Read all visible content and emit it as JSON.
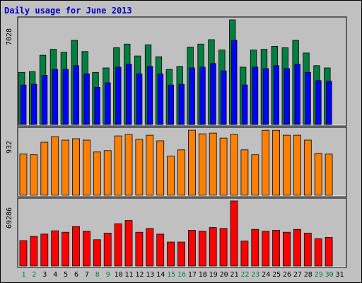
{
  "title": "Daily usage for June 2013",
  "colors": {
    "background": "#c0c0c0",
    "title": "#0000c8",
    "series_top_back": "#008040",
    "series_top_front": "#0000ff",
    "series_mid": "#ff8000",
    "series_bottom": "#ff0000",
    "weekend_label": "#008040",
    "weekday_label": "#000000"
  },
  "chart_data": [
    {
      "type": "bar",
      "panel": "top",
      "ymax_label": "7028",
      "ylim": [
        0,
        7028
      ],
      "categories": [
        "1",
        "2",
        "3",
        "4",
        "5",
        "6",
        "7",
        "8",
        "9",
        "10",
        "11",
        "12",
        "13",
        "14",
        "15",
        "16",
        "17",
        "18",
        "19",
        "20",
        "21",
        "22",
        "23",
        "24",
        "25",
        "26",
        "27",
        "28",
        "29",
        "30",
        "31"
      ],
      "series": [
        {
          "color": "#008040",
          "values": [
            3500,
            3550,
            4650,
            5050,
            4850,
            5650,
            4900,
            3500,
            3800,
            5150,
            5400,
            4600,
            5350,
            4550,
            3700,
            3900,
            5200,
            5400,
            5700,
            5000,
            7028,
            3850,
            5000,
            5050,
            5250,
            5150,
            5650,
            4800,
            3950,
            3800,
            0
          ]
        },
        {
          "color": "#0000ff",
          "values": [
            2650,
            2700,
            3300,
            3700,
            3700,
            3950,
            3400,
            2500,
            2800,
            3850,
            4050,
            3400,
            3900,
            3400,
            2650,
            2700,
            3800,
            3850,
            4100,
            3600,
            5650,
            2650,
            3850,
            3750,
            3950,
            3750,
            4050,
            3500,
            2950,
            2900,
            0
          ]
        }
      ]
    },
    {
      "type": "bar",
      "panel": "middle",
      "ymax_label": "932",
      "ylim": [
        0,
        932
      ],
      "categories": [
        "1",
        "2",
        "3",
        "4",
        "5",
        "6",
        "7",
        "8",
        "9",
        "10",
        "11",
        "12",
        "13",
        "14",
        "15",
        "16",
        "17",
        "18",
        "19",
        "20",
        "21",
        "22",
        "23",
        "24",
        "25",
        "26",
        "27",
        "28",
        "29",
        "30",
        "31"
      ],
      "series": [
        {
          "color": "#ff8000",
          "values": [
            590,
            580,
            760,
            840,
            790,
            810,
            790,
            620,
            640,
            850,
            870,
            800,
            860,
            780,
            560,
            650,
            932,
            880,
            890,
            820,
            870,
            650,
            580,
            930,
            930,
            860,
            860,
            790,
            600,
            590,
            0
          ]
        }
      ]
    },
    {
      "type": "bar",
      "panel": "bottom",
      "ymax_label": "69286",
      "ylim": [
        0,
        69286
      ],
      "categories": [
        "1",
        "2",
        "3",
        "4",
        "5",
        "6",
        "7",
        "8",
        "9",
        "10",
        "11",
        "12",
        "13",
        "14",
        "15",
        "16",
        "17",
        "18",
        "19",
        "20",
        "21",
        "22",
        "23",
        "24",
        "25",
        "26",
        "27",
        "28",
        "29",
        "30",
        "31"
      ],
      "series": [
        {
          "color": "#ff0000",
          "values": [
            27000,
            31500,
            34000,
            37500,
            36000,
            42000,
            37000,
            28000,
            35000,
            45000,
            48500,
            36000,
            40000,
            34000,
            25500,
            25500,
            38000,
            37000,
            41000,
            40000,
            69286,
            26500,
            39000,
            37000,
            38000,
            36000,
            39000,
            35000,
            29000,
            30500,
            0
          ]
        }
      ]
    }
  ],
  "days": [
    {
      "label": "1",
      "weekend": true
    },
    {
      "label": "2",
      "weekend": true
    },
    {
      "label": "3",
      "weekend": false
    },
    {
      "label": "4",
      "weekend": false
    },
    {
      "label": "5",
      "weekend": false
    },
    {
      "label": "6",
      "weekend": false
    },
    {
      "label": "7",
      "weekend": false
    },
    {
      "label": "8",
      "weekend": true
    },
    {
      "label": "9",
      "weekend": true
    },
    {
      "label": "10",
      "weekend": false
    },
    {
      "label": "11",
      "weekend": false
    },
    {
      "label": "12",
      "weekend": false
    },
    {
      "label": "13",
      "weekend": false
    },
    {
      "label": "14",
      "weekend": false
    },
    {
      "label": "15",
      "weekend": true
    },
    {
      "label": "16",
      "weekend": true
    },
    {
      "label": "17",
      "weekend": false
    },
    {
      "label": "18",
      "weekend": false
    },
    {
      "label": "19",
      "weekend": false
    },
    {
      "label": "20",
      "weekend": false
    },
    {
      "label": "21",
      "weekend": false
    },
    {
      "label": "22",
      "weekend": true
    },
    {
      "label": "23",
      "weekend": true
    },
    {
      "label": "24",
      "weekend": false
    },
    {
      "label": "25",
      "weekend": false
    },
    {
      "label": "26",
      "weekend": false
    },
    {
      "label": "27",
      "weekend": false
    },
    {
      "label": "28",
      "weekend": false
    },
    {
      "label": "29",
      "weekend": true
    },
    {
      "label": "30",
      "weekend": true
    },
    {
      "label": "31",
      "weekend": false
    }
  ]
}
